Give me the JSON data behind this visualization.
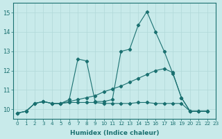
{
  "xlabel": "Humidex (Indice chaleur)",
  "xlim": [
    -0.5,
    23
  ],
  "ylim": [
    9.5,
    15.5
  ],
  "yticks": [
    10,
    11,
    12,
    13,
    14,
    15
  ],
  "xticks": [
    0,
    1,
    2,
    3,
    4,
    5,
    6,
    7,
    8,
    9,
    10,
    11,
    12,
    13,
    14,
    15,
    16,
    17,
    18,
    19,
    20,
    21,
    22,
    23
  ],
  "background_color": "#c8eaea",
  "grid_color": "#b0d8d8",
  "line_color": "#1a7070",
  "series": [
    {
      "x": [
        0,
        1,
        2,
        3,
        4,
        5,
        6,
        7,
        8,
        9,
        10,
        11,
        12,
        13,
        14,
        15,
        16,
        17,
        18,
        19,
        20,
        21,
        22
      ],
      "y": [
        9.8,
        9.9,
        10.3,
        10.4,
        10.3,
        10.3,
        10.5,
        12.6,
        12.5,
        10.4,
        10.4,
        10.5,
        13.0,
        13.1,
        14.35,
        15.05,
        14.0,
        13.0,
        11.85,
        10.6,
        9.9,
        9.9,
        9.9
      ]
    },
    {
      "x": [
        0,
        1,
        2,
        3,
        4,
        5,
        6,
        7,
        8,
        9,
        10,
        11,
        12,
        13,
        14,
        15,
        16,
        17,
        18,
        19,
        20,
        21,
        22
      ],
      "y": [
        9.8,
        9.9,
        10.3,
        10.4,
        10.3,
        10.3,
        10.4,
        10.5,
        10.6,
        10.7,
        10.9,
        11.05,
        11.2,
        11.4,
        11.6,
        11.8,
        12.0,
        12.1,
        11.9,
        10.6,
        9.9,
        9.9,
        9.9
      ]
    },
    {
      "x": [
        0,
        1,
        2,
        3,
        4,
        5,
        6,
        7,
        8,
        9,
        10,
        11,
        12,
        13,
        14,
        15,
        16,
        17,
        18,
        19,
        20,
        21,
        22
      ],
      "y": [
        9.8,
        9.9,
        10.3,
        10.4,
        10.3,
        10.3,
        10.35,
        10.35,
        10.35,
        10.35,
        10.3,
        10.3,
        10.3,
        10.3,
        10.35,
        10.35,
        10.3,
        10.3,
        10.3,
        10.3,
        9.9,
        9.9,
        9.9
      ]
    }
  ]
}
